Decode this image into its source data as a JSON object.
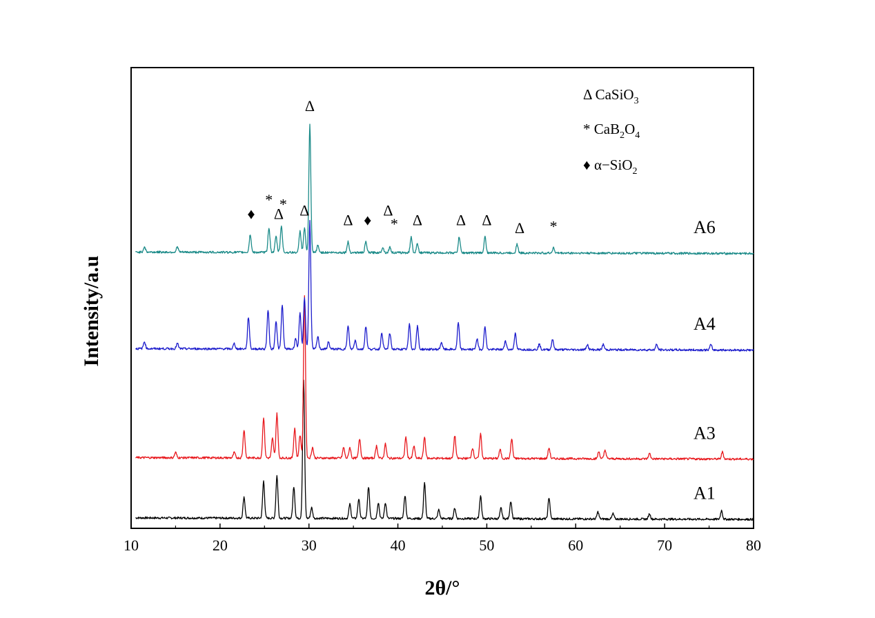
{
  "chart_data": {
    "type": "line",
    "title": "",
    "xlabel": "2θ/°",
    "ylabel": "Intensity/a.u",
    "xlim": [
      10,
      80
    ],
    "xticks": [
      10,
      20,
      30,
      40,
      50,
      60,
      70,
      80
    ],
    "yticks": [],
    "grid": false,
    "legend": {
      "placement": "top-right",
      "entries": [
        {
          "symbol": "Δ",
          "marker": "triangle-open",
          "main": "CaSiO",
          "sub": "3",
          "tail": ""
        },
        {
          "symbol": "*",
          "marker": "asterisk",
          "main": "CaB",
          "sub": "2",
          "tail": "O",
          "sub2": "4"
        },
        {
          "symbol": "♦",
          "marker": "diamond-filled",
          "main": "α−SiO",
          "sub": "2",
          "tail": ""
        }
      ]
    },
    "series": [
      {
        "name": "A1",
        "color": "#000000",
        "baseline": 0.55,
        "peaks": [
          {
            "x": 22.7,
            "h": 1.2
          },
          {
            "x": 24.9,
            "h": 2.1
          },
          {
            "x": 26.4,
            "h": 2.4
          },
          {
            "x": 28.3,
            "h": 1.8
          },
          {
            "x": 29.4,
            "h": 7.8
          },
          {
            "x": 30.3,
            "h": 0.6
          },
          {
            "x": 34.6,
            "h": 0.8
          },
          {
            "x": 35.6,
            "h": 1.1
          },
          {
            "x": 36.7,
            "h": 1.8
          },
          {
            "x": 37.8,
            "h": 0.9
          },
          {
            "x": 38.6,
            "h": 0.9
          },
          {
            "x": 40.8,
            "h": 1.3
          },
          {
            "x": 43.0,
            "h": 2.0
          },
          {
            "x": 44.6,
            "h": 0.5
          },
          {
            "x": 46.4,
            "h": 0.6
          },
          {
            "x": 49.3,
            "h": 1.3
          },
          {
            "x": 51.6,
            "h": 0.6
          },
          {
            "x": 52.7,
            "h": 1.0
          },
          {
            "x": 57.0,
            "h": 1.2
          },
          {
            "x": 62.5,
            "h": 0.4
          },
          {
            "x": 64.2,
            "h": 0.3
          },
          {
            "x": 68.3,
            "h": 0.3
          },
          {
            "x": 76.4,
            "h": 0.5
          }
        ]
      },
      {
        "name": "A3",
        "color": "#e8171c",
        "baseline": 3.95,
        "peaks": [
          {
            "x": 15.0,
            "h": 0.3
          },
          {
            "x": 21.6,
            "h": 0.3
          },
          {
            "x": 22.7,
            "h": 1.6
          },
          {
            "x": 24.9,
            "h": 2.3
          },
          {
            "x": 25.9,
            "h": 1.1
          },
          {
            "x": 26.4,
            "h": 2.5
          },
          {
            "x": 28.4,
            "h": 1.7
          },
          {
            "x": 29.0,
            "h": 1.3
          },
          {
            "x": 29.5,
            "h": 9.2
          },
          {
            "x": 30.4,
            "h": 0.6
          },
          {
            "x": 33.9,
            "h": 0.6
          },
          {
            "x": 34.6,
            "h": 0.6
          },
          {
            "x": 35.7,
            "h": 1.1
          },
          {
            "x": 37.6,
            "h": 0.7
          },
          {
            "x": 38.6,
            "h": 0.8
          },
          {
            "x": 40.9,
            "h": 1.2
          },
          {
            "x": 41.8,
            "h": 0.7
          },
          {
            "x": 43.0,
            "h": 1.2
          },
          {
            "x": 46.4,
            "h": 1.3
          },
          {
            "x": 48.4,
            "h": 0.6
          },
          {
            "x": 49.3,
            "h": 1.4
          },
          {
            "x": 51.5,
            "h": 0.5
          },
          {
            "x": 52.8,
            "h": 1.1
          },
          {
            "x": 57.0,
            "h": 0.6
          },
          {
            "x": 62.6,
            "h": 0.4
          },
          {
            "x": 63.3,
            "h": 0.5
          },
          {
            "x": 68.3,
            "h": 0.3
          },
          {
            "x": 76.5,
            "h": 0.4
          }
        ]
      },
      {
        "name": "A4",
        "color": "#1c1ccc",
        "baseline": 10.1,
        "peaks": [
          {
            "x": 11.5,
            "h": 0.4
          },
          {
            "x": 15.2,
            "h": 0.3
          },
          {
            "x": 21.6,
            "h": 0.3
          },
          {
            "x": 23.2,
            "h": 1.8
          },
          {
            "x": 25.4,
            "h": 2.2
          },
          {
            "x": 26.3,
            "h": 1.6
          },
          {
            "x": 27.0,
            "h": 2.5
          },
          {
            "x": 28.5,
            "h": 0.6
          },
          {
            "x": 29.0,
            "h": 2.0
          },
          {
            "x": 29.5,
            "h": 2.9
          },
          {
            "x": 30.1,
            "h": 7.3
          },
          {
            "x": 31.0,
            "h": 0.7
          },
          {
            "x": 32.2,
            "h": 0.4
          },
          {
            "x": 34.4,
            "h": 1.3
          },
          {
            "x": 35.2,
            "h": 0.5
          },
          {
            "x": 36.4,
            "h": 1.3
          },
          {
            "x": 38.2,
            "h": 0.9
          },
          {
            "x": 39.1,
            "h": 0.9
          },
          {
            "x": 41.3,
            "h": 1.4
          },
          {
            "x": 42.2,
            "h": 1.3
          },
          {
            "x": 44.9,
            "h": 0.4
          },
          {
            "x": 46.8,
            "h": 1.5
          },
          {
            "x": 48.9,
            "h": 0.6
          },
          {
            "x": 49.8,
            "h": 1.3
          },
          {
            "x": 52.1,
            "h": 0.5
          },
          {
            "x": 53.2,
            "h": 0.9
          },
          {
            "x": 55.9,
            "h": 0.3
          },
          {
            "x": 57.4,
            "h": 0.6
          },
          {
            "x": 61.3,
            "h": 0.3
          },
          {
            "x": 63.1,
            "h": 0.3
          },
          {
            "x": 69.1,
            "h": 0.3
          },
          {
            "x": 75.2,
            "h": 0.3
          }
        ]
      },
      {
        "name": "A6",
        "color": "#1a8a88",
        "baseline": 15.55,
        "peaks": [
          {
            "x": 11.5,
            "h": 0.3
          },
          {
            "x": 15.2,
            "h": 0.3
          },
          {
            "x": 23.4,
            "h": 1.0
          },
          {
            "x": 25.5,
            "h": 1.4
          },
          {
            "x": 26.3,
            "h": 0.9
          },
          {
            "x": 26.9,
            "h": 1.5
          },
          {
            "x": 29.0,
            "h": 1.2
          },
          {
            "x": 29.5,
            "h": 1.4
          },
          {
            "x": 30.1,
            "h": 7.2
          },
          {
            "x": 31.0,
            "h": 0.4
          },
          {
            "x": 34.4,
            "h": 0.6
          },
          {
            "x": 36.4,
            "h": 0.6
          },
          {
            "x": 38.3,
            "h": 0.3
          },
          {
            "x": 39.1,
            "h": 0.3
          },
          {
            "x": 41.5,
            "h": 0.9
          },
          {
            "x": 42.2,
            "h": 0.5
          },
          {
            "x": 46.9,
            "h": 0.9
          },
          {
            "x": 49.8,
            "h": 0.9
          },
          {
            "x": 53.4,
            "h": 0.5
          },
          {
            "x": 57.5,
            "h": 0.3
          }
        ]
      }
    ],
    "annotations": [
      {
        "text": "♦",
        "x": 23.5,
        "y": 17.45
      },
      {
        "text": "*",
        "x": 25.5,
        "y": 18.25
      },
      {
        "text": "*",
        "x": 27.1,
        "y": 18.0
      },
      {
        "text": "Δ",
        "x": 26.6,
        "y": 17.45
      },
      {
        "text": "Δ",
        "x": 29.5,
        "y": 17.65
      },
      {
        "text": "Δ",
        "x": 30.1,
        "y": 23.55
      },
      {
        "text": "Δ",
        "x": 34.4,
        "y": 17.1
      },
      {
        "text": "♦",
        "x": 36.6,
        "y": 17.1
      },
      {
        "text": "Δ",
        "x": 38.9,
        "y": 17.65
      },
      {
        "text": "*",
        "x": 39.6,
        "y": 16.9
      },
      {
        "text": "Δ",
        "x": 42.2,
        "y": 17.1
      },
      {
        "text": "Δ",
        "x": 47.1,
        "y": 17.1
      },
      {
        "text": "Δ",
        "x": 50.0,
        "y": 17.1
      },
      {
        "text": "Δ",
        "x": 53.7,
        "y": 16.65
      },
      {
        "text": "*",
        "x": 57.5,
        "y": 16.75
      }
    ]
  }
}
